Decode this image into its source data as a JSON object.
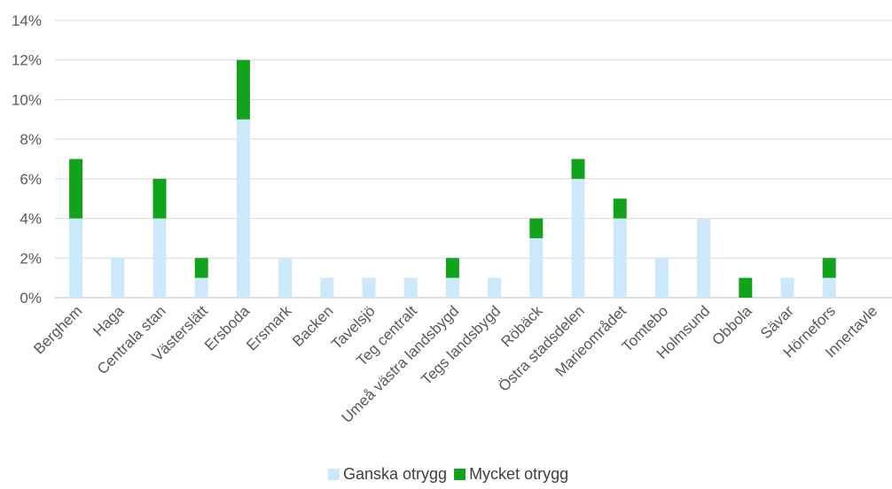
{
  "chart_data": {
    "type": "bar",
    "stacked": true,
    "categories": [
      "Berghem",
      "Haga",
      "Centrala stan",
      "Västerslätt",
      "Ersboda",
      "Ersmark",
      "Backen",
      "Tavelsjö",
      "Teg centralt",
      "Umeå västra landsbygd",
      "Tegs landsbygd",
      "Röbäck",
      "Östra stadsdelen",
      "Marieområdet",
      "Tomtebo",
      "Holmsund",
      "Obbola",
      "Sävar",
      "Hörnefors",
      "Innertavle"
    ],
    "series": [
      {
        "name": "Ganska otrygg",
        "color": "#cce8fb",
        "values": [
          4,
          2,
          4,
          1,
          9,
          2,
          1,
          1,
          1,
          1,
          1,
          3,
          6,
          4,
          2,
          4,
          0,
          1,
          1,
          0
        ]
      },
      {
        "name": "Mycket otrygg",
        "color": "#11a31b",
        "values": [
          3,
          0,
          2,
          1,
          3,
          0,
          0,
          0,
          0,
          1,
          0,
          1,
          1,
          1,
          0,
          0,
          1,
          0,
          1,
          0
        ]
      }
    ],
    "ylim": [
      0,
      14
    ],
    "yticks": [
      "0%",
      "2%",
      "4%",
      "6%",
      "8%",
      "10%",
      "12%",
      "14%"
    ],
    "grid": true,
    "legend_position": "bottom"
  }
}
